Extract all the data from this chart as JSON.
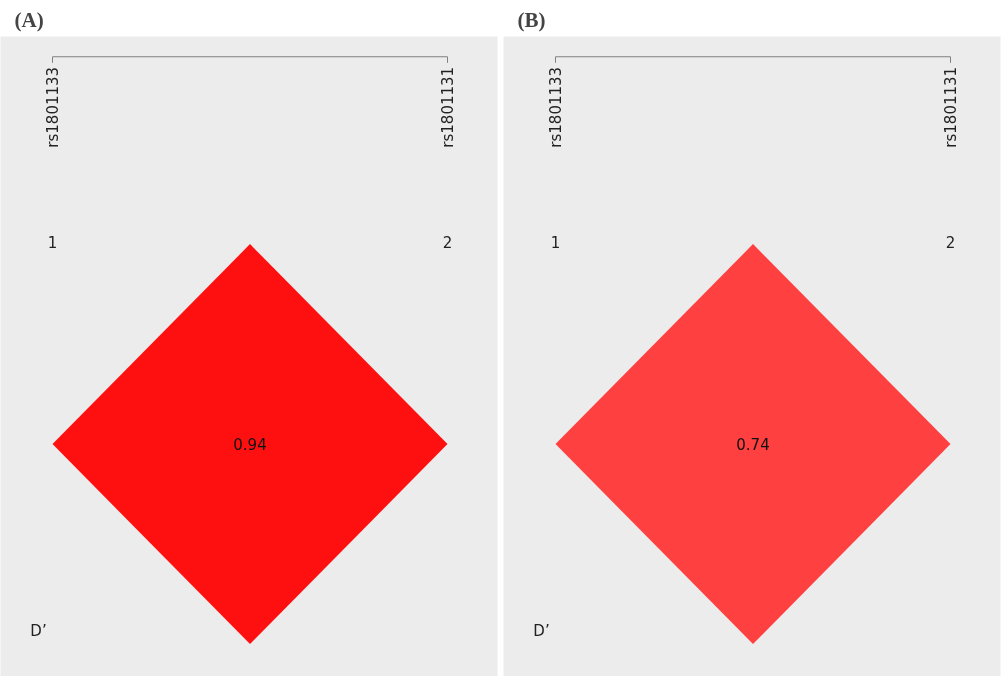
{
  "chart_data": [
    {
      "type": "other",
      "title": "(A)",
      "values": [
        0.94
      ],
      "colors": [
        "#fe1010"
      ],
      "data_labels": true,
      "annotations": [
        "rs1801133",
        "rs1801131",
        "1",
        "2",
        "D’"
      ]
    },
    {
      "type": "other",
      "title": "(B)",
      "values": [
        0.74
      ],
      "colors": [
        "#fe4040"
      ],
      "data_labels": true,
      "annotations": [
        "rs1801133",
        "rs1801131",
        "1",
        "2",
        "D’"
      ]
    }
  ]
}
